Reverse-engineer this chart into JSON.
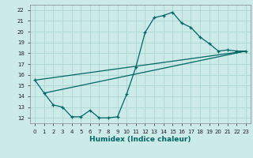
{
  "xlabel": "Humidex (Indice chaleur)",
  "ylabel": "",
  "background_color": "#cceae7",
  "grid_color": "#aad4d0",
  "line_color": "#006666",
  "xlim": [
    -0.5,
    23.5
  ],
  "ylim": [
    11.5,
    22.5
  ],
  "xticks": [
    0,
    1,
    2,
    3,
    4,
    5,
    6,
    7,
    8,
    9,
    10,
    11,
    12,
    13,
    14,
    15,
    16,
    17,
    18,
    19,
    20,
    21,
    22,
    23
  ],
  "yticks": [
    12,
    13,
    14,
    15,
    16,
    17,
    18,
    19,
    20,
    21,
    22
  ],
  "line1_x": [
    0,
    1,
    2,
    3,
    4,
    5,
    6,
    7,
    8,
    9,
    10,
    11,
    12,
    13,
    14,
    15,
    16,
    17,
    18,
    19,
    20,
    21,
    22,
    23
  ],
  "line1_y": [
    15.5,
    14.3,
    13.2,
    13.0,
    12.1,
    12.1,
    12.7,
    12.0,
    12.0,
    12.1,
    14.2,
    16.7,
    19.9,
    21.3,
    21.5,
    21.8,
    20.8,
    20.4,
    19.5,
    18.9,
    18.2,
    18.3,
    18.2,
    18.2
  ],
  "line2_x": [
    0,
    23
  ],
  "line2_y": [
    15.5,
    18.2
  ],
  "line3_x": [
    1,
    23
  ],
  "line3_y": [
    14.3,
    18.2
  ]
}
